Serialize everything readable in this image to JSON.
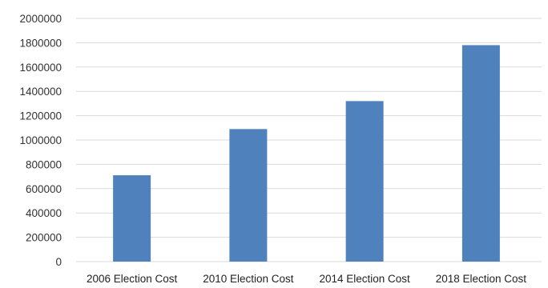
{
  "chart_data": {
    "type": "bar",
    "title": "",
    "xlabel": "",
    "ylabel": "",
    "categories": [
      "2006 Election Cost",
      "2010 Election Cost",
      "2014 Election Cost",
      "2018 Election Cost"
    ],
    "values": [
      710000,
      1090000,
      1320000,
      1780000
    ],
    "ylim": [
      0,
      2000000
    ],
    "yticks": [
      "0",
      "200000",
      "400000",
      "600000",
      "800000",
      "1000000",
      "1200000",
      "1400000",
      "1600000",
      "1800000",
      "2000000"
    ],
    "grid": true,
    "legend": "none",
    "colors": {
      "bar": "#4f81bd",
      "grid": "#d9d9d9"
    }
  }
}
